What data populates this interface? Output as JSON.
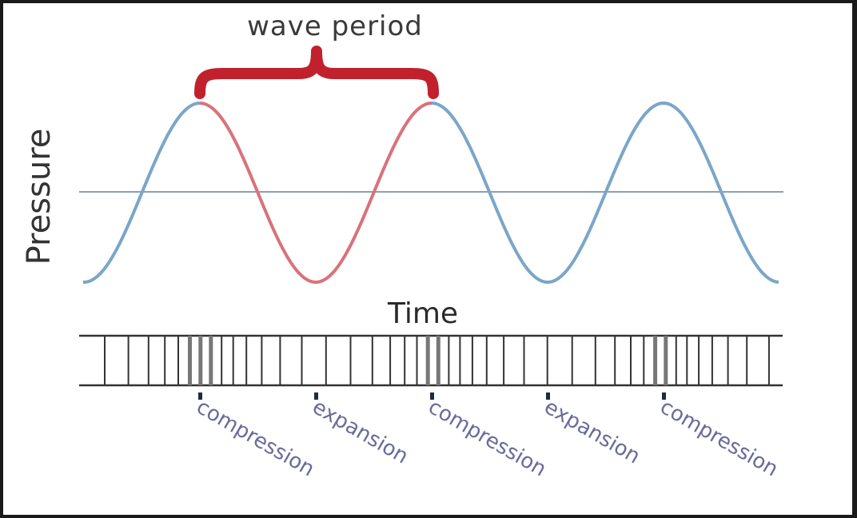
{
  "title": "wave period",
  "y_axis_label": "Pressure",
  "x_axis_label": "Time",
  "phase_labels": [
    "compression",
    "expansion",
    "compression",
    "expansion",
    "compression"
  ],
  "colors": {
    "wave": "#7aa6c8",
    "highlighted_period": "#d9727a",
    "brace": "#c0212c",
    "baseline": "#8aa0b4",
    "bars": "#333333",
    "tick": "#222a40",
    "label": "#6a6a9a"
  },
  "chart_data": {
    "type": "line",
    "curve": "sine",
    "cycles": 3,
    "series": [
      {
        "values": "pressure",
        "highlighted_cycle": 1
      }
    ]
  }
}
